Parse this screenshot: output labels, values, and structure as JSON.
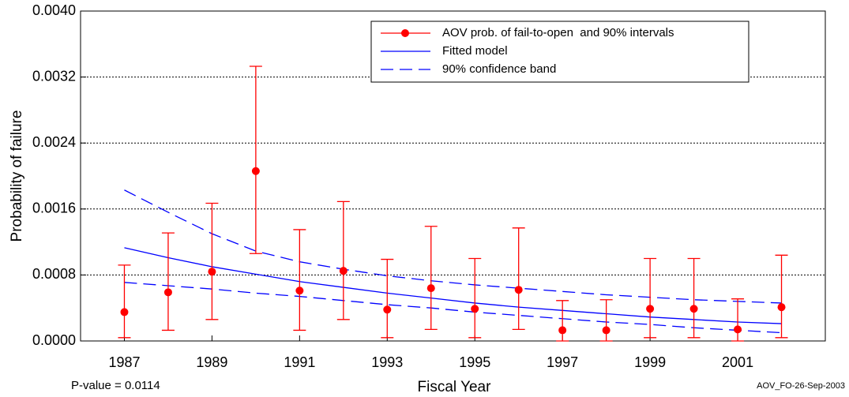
{
  "chart_data": {
    "type": "errorbar",
    "xlabel": "Fiscal Year",
    "ylabel": "Probability of failure",
    "annotations": [
      "P-value = 0.0114",
      "AOV_FO-26-Sep-2003"
    ],
    "x": [
      1987,
      1988,
      1989,
      1990,
      1991,
      1992,
      1993,
      1994,
      1995,
      1996,
      1997,
      1998,
      1999,
      2000,
      2001,
      2002
    ],
    "xlim": [
      1986,
      2003
    ],
    "xticks": [
      1987,
      1989,
      1991,
      1993,
      1995,
      1997,
      1999,
      2001
    ],
    "ylim": [
      0,
      0.004
    ],
    "yticks": [
      {
        "value": 0,
        "label": "0.0000"
      },
      {
        "value": 0.0008,
        "label": "0.0008"
      },
      {
        "value": 0.0016,
        "label": "0.0016"
      },
      {
        "value": 0.0024,
        "label": "0.0024"
      },
      {
        "value": 0.0032,
        "label": "0.0032"
      },
      {
        "value": 0.004,
        "label": "0.0040"
      }
    ],
    "grid": true,
    "legend": "top-right",
    "series": [
      {
        "name": "AOV prob. of fail-to-open  and 90% intervals",
        "color": "#ff0000",
        "values": [
          0.00035,
          0.00059,
          0.00084,
          0.00206,
          0.00061,
          0.00085,
          0.00038,
          0.00064,
          0.00039,
          0.00062,
          0.00013,
          0.00013,
          0.00039,
          0.00039,
          0.00014,
          0.00041
        ],
        "lower": [
          4e-05,
          0.00013,
          0.00026,
          0.00106,
          0.00013,
          0.00026,
          4e-05,
          0.00014,
          4e-05,
          0.00014,
          0,
          0,
          4e-05,
          4e-05,
          0,
          4e-05
        ],
        "upper": [
          0.00092,
          0.00131,
          0.00167,
          0.00333,
          0.00135,
          0.00169,
          0.00099,
          0.00139,
          0.001,
          0.00137,
          0.00049,
          0.0005,
          0.001,
          0.001,
          0.00051,
          0.00104
        ]
      },
      {
        "name": "Fitted model",
        "color": "#0000ff",
        "values": [
          0.00113,
          0.00101,
          0.0009,
          0.00081,
          0.00072,
          0.00065,
          0.00058,
          0.00052,
          0.00046,
          0.00041,
          0.00037,
          0.00033,
          0.00029,
          0.00026,
          0.00023,
          0.00021
        ]
      },
      {
        "name": "90% confidence band",
        "color": "#0000ff",
        "dash": true,
        "upper": [
          0.00183,
          0.00156,
          0.0013,
          0.00109,
          0.00096,
          0.00087,
          0.00079,
          0.00073,
          0.00068,
          0.00064,
          0.0006,
          0.00056,
          0.00053,
          0.0005,
          0.00048,
          0.00046
        ],
        "lower": [
          0.00071,
          0.00067,
          0.00063,
          0.00058,
          0.00054,
          0.00049,
          0.00044,
          0.0004,
          0.00035,
          0.00031,
          0.00027,
          0.00023,
          0.0002,
          0.00016,
          0.00013,
          0.0001
        ]
      }
    ]
  }
}
